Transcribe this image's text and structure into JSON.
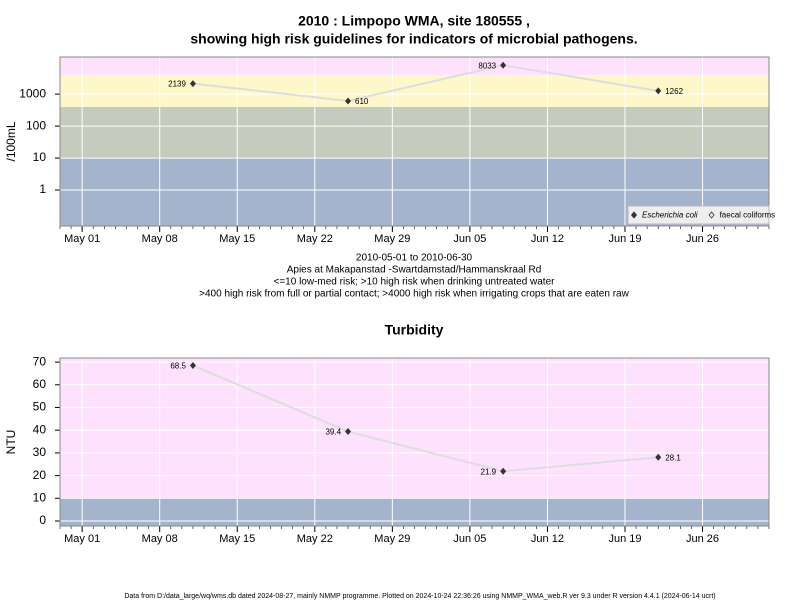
{
  "chart_data": [
    {
      "type": "line",
      "title": [
        "2010 : Limpopo WMA, site 180555 ,",
        "showing high risk guidelines for indicators of microbial pathogens."
      ],
      "ylabel": "/100mL",
      "log_scale": true,
      "grid": true,
      "legend": "bottom-right",
      "x": [
        "May 11",
        "May 25",
        "Jun 08",
        "Jun 22"
      ],
      "xlim": [
        "Apr 29",
        "Jul 02"
      ],
      "xticks": [
        "May 01",
        "May 08",
        "May 15",
        "May 22",
        "May 29",
        "Jun 05",
        "Jun 12",
        "Jun 19",
        "Jun 26"
      ],
      "ylim": [
        0.075,
        14500
      ],
      "yticks": [
        1,
        10,
        100,
        1000
      ],
      "bands": [
        {
          "to": 10,
          "color": "#a3b4cc"
        },
        {
          "from": 10,
          "to": 400,
          "color": "#c5cbbd"
        },
        {
          "from": 400,
          "to": 4000,
          "color": "#fdf7c9"
        },
        {
          "from": 4000,
          "color": "#fde1fd"
        }
      ],
      "series": [
        {
          "name": "Escherichia coli",
          "color": "#333333",
          "values": [
            2139,
            610,
            8033,
            1262
          ]
        },
        {
          "name": "faecal coliforms",
          "color": "#333333",
          "values": [
            null,
            null,
            null,
            null
          ]
        }
      ],
      "notes": [
        "2010-05-01 to 2010-06-30",
        "Apies at Makapanstad -Swartdamstad/Hammanskraal Rd",
        "<=10 low-med risk; >10 high risk when drinking untreated water",
        ">400 high risk from full or partial contact; >4000 high risk when irrigating crops that are eaten raw"
      ]
    },
    {
      "type": "line",
      "title": [
        "Turbidity"
      ],
      "ylabel": "NTU",
      "log_scale": false,
      "grid": true,
      "x": [
        "May 11",
        "May 25",
        "Jun 08",
        "Jun 22"
      ],
      "xlim": [
        "Apr 29",
        "Jul 02"
      ],
      "xticks": [
        "May 01",
        "May 08",
        "May 15",
        "May 22",
        "May 29",
        "Jun 05",
        "Jun 12",
        "Jun 19",
        "Jun 26"
      ],
      "ylim": [
        -2.2,
        71.8
      ],
      "yticks": [
        0,
        10,
        20,
        30,
        40,
        50,
        60,
        70
      ],
      "bands": [
        {
          "to": 10,
          "color": "#a3b4cc"
        },
        {
          "from": 10,
          "color": "#fde1fd"
        }
      ],
      "series": [
        {
          "name": "Turbidity",
          "color": "#333333",
          "values": [
            68.5,
            39.4,
            21.9,
            28.1
          ]
        }
      ]
    }
  ],
  "footer": "Data from D:/data_large/wq/wms.db dated 2024-08-27, mainly NMMP programme. Plotted on 2024-10-24 22:36:26 using NMMP_WMA_web.R ver 9.3 under R version 4.4.1 (2024-06-14 ucrt)"
}
